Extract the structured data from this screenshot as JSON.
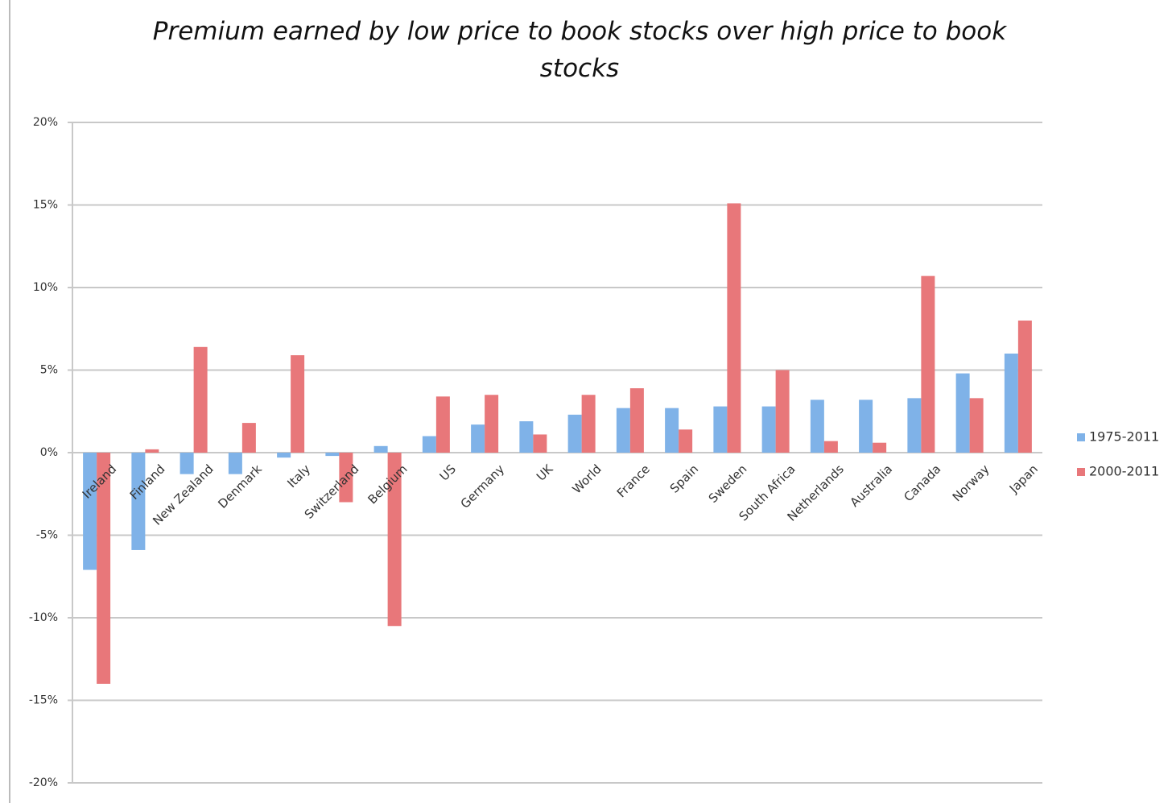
{
  "chart_data": {
    "type": "bar",
    "title": "Premium earned by low price to book stocks over high price to book stocks",
    "categories": [
      "Ireland",
      "Finland",
      "New Zealand",
      "Denmark",
      "Italy",
      "Switzerland",
      "Belgium",
      "US",
      "Germany",
      "UK",
      "World",
      "France",
      "Spain",
      "Sweden",
      "South Africa",
      "Netherlands",
      "Australia",
      "Canada",
      "Norway",
      "Japan"
    ],
    "series": [
      {
        "name": "1975-2011",
        "color": "#7fb2e8",
        "values": [
          -7.1,
          -5.9,
          -1.3,
          -1.3,
          -0.3,
          -0.2,
          0.4,
          1.0,
          1.7,
          1.9,
          2.3,
          2.7,
          2.7,
          2.8,
          2.8,
          3.2,
          3.2,
          3.3,
          4.8,
          6.0
        ]
      },
      {
        "name": "2000-2011",
        "color": "#e8777a",
        "values": [
          -14.0,
          0.2,
          6.4,
          1.8,
          5.9,
          -3.0,
          -10.5,
          3.4,
          3.5,
          1.1,
          3.5,
          3.9,
          1.4,
          15.1,
          5.0,
          0.7,
          0.6,
          10.7,
          3.3,
          8.0
        ]
      }
    ],
    "ylim": [
      -20,
      20
    ],
    "yticks": [
      {
        "value": -20,
        "label": "-20%"
      },
      {
        "value": -15,
        "label": "-15%"
      },
      {
        "value": -10,
        "label": "-10%"
      },
      {
        "value": -5,
        "label": "-5%"
      },
      {
        "value": 0,
        "label": "0%"
      },
      {
        "value": 5,
        "label": "5%"
      },
      {
        "value": 10,
        "label": "10%"
      },
      {
        "value": 15,
        "label": "15%"
      },
      {
        "value": 20,
        "label": "20%"
      }
    ],
    "grid": true,
    "legend": "right"
  }
}
